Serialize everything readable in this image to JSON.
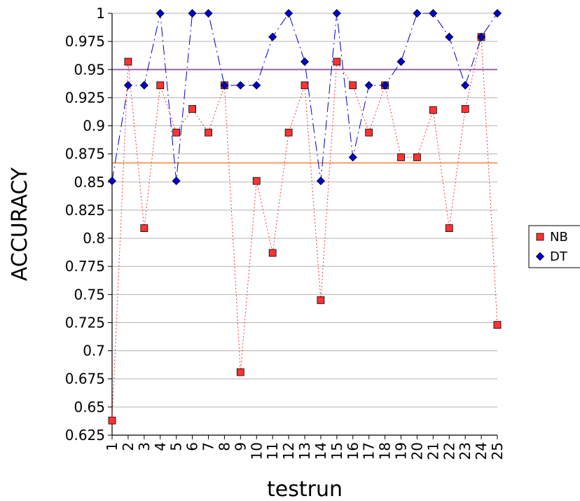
{
  "chart_data": {
    "type": "line",
    "title": "",
    "xlabel": "testrun",
    "ylabel": "ACCURACY",
    "ylim": [
      0.625,
      1
    ],
    "yticks": [
      "0.625",
      "0.65",
      "0.675",
      "0.7",
      "0.725",
      "0.75",
      "0.775",
      "0.8",
      "0.825",
      "0.85",
      "0.875",
      "0.9",
      "0.925",
      "0.95",
      "0.975",
      "1"
    ],
    "categories": [
      "1",
      "2",
      "3",
      "4",
      "5",
      "6",
      "7",
      "8",
      "9",
      "10",
      "11",
      "12",
      "13",
      "14",
      "15",
      "16",
      "17",
      "18",
      "19",
      "20",
      "21",
      "22",
      "23",
      "24",
      "25"
    ],
    "grid": "horizontal",
    "legend_position": "right",
    "series": [
      {
        "name": "NB",
        "color": "#ff3333",
        "marker": "square",
        "line": "dotted",
        "values": [
          0.638,
          0.957,
          0.809,
          0.936,
          0.894,
          0.915,
          0.894,
          0.936,
          0.681,
          0.851,
          0.787,
          0.894,
          0.936,
          0.745,
          0.957,
          0.936,
          0.894,
          0.936,
          0.872,
          0.872,
          0.914,
          0.809,
          0.915,
          0.979,
          0.723
        ]
      },
      {
        "name": "DT",
        "color": "#0000cc",
        "marker": "diamond",
        "line": "dashdot",
        "values": [
          0.851,
          0.936,
          0.936,
          1.0,
          0.851,
          1.0,
          1.0,
          0.936,
          0.936,
          0.936,
          0.979,
          1.0,
          0.957,
          0.851,
          1.0,
          0.872,
          0.936,
          0.936,
          0.957,
          1.0,
          1.0,
          0.979,
          0.936,
          0.979,
          1.0
        ]
      }
    ],
    "reference_lines": [
      {
        "value": 0.95,
        "color": "#9966aa"
      },
      {
        "value": 0.867,
        "color": "#f0a060"
      }
    ]
  }
}
